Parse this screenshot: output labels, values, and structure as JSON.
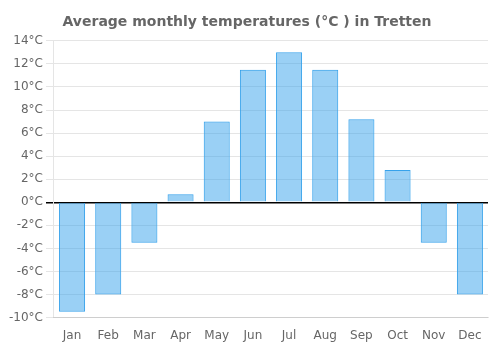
{
  "chart_data": {
    "type": "bar",
    "title": "Average monthly temperatures (°C ) in Tretten",
    "categories": [
      "Jan",
      "Feb",
      "Mar",
      "Apr",
      "May",
      "Jun",
      "Jul",
      "Aug",
      "Sep",
      "Oct",
      "Nov",
      "Dec"
    ],
    "values": [
      -9.5,
      -8.0,
      -3.5,
      0.7,
      7.0,
      11.5,
      13.0,
      11.5,
      7.2,
      2.8,
      -3.5,
      -8.0
    ],
    "ylim": [
      -10,
      14
    ],
    "yticks": [
      {
        "value": -10,
        "label": "-10°C"
      },
      {
        "value": -8,
        "label": "-8°C"
      },
      {
        "value": -6,
        "label": "-6°C"
      },
      {
        "value": -4,
        "label": "-4°C"
      },
      {
        "value": -2,
        "label": "-2°C"
      },
      {
        "value": 0,
        "label": "0°C"
      },
      {
        "value": 2,
        "label": "2°C"
      },
      {
        "value": 4,
        "label": "4°C"
      },
      {
        "value": 6,
        "label": "6°C"
      },
      {
        "value": 8,
        "label": "8°C"
      },
      {
        "value": 10,
        "label": "10°C"
      },
      {
        "value": 12,
        "label": "12°C"
      },
      {
        "value": 14,
        "label": "14°C"
      }
    ],
    "grid": true
  }
}
